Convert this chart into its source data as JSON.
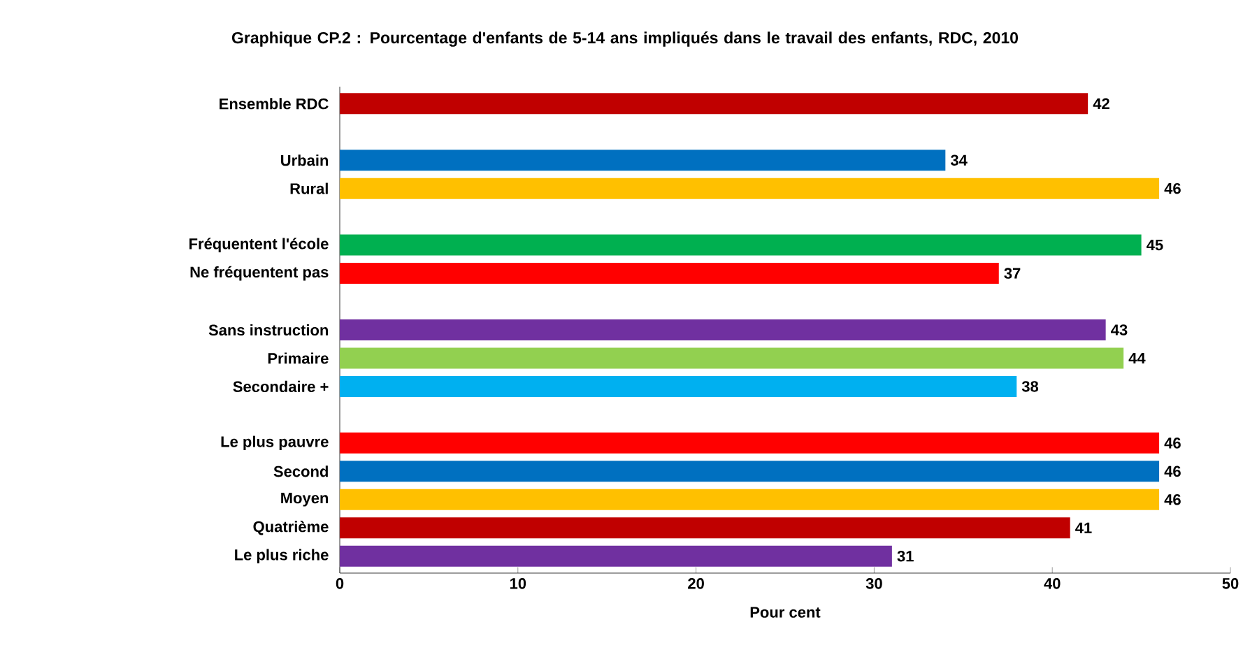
{
  "chart_data": {
    "type": "bar",
    "orientation": "horizontal",
    "title": "Graphique CP.2 : Pourcentage d'enfants de 5-14 ans impliqués dans le travail des enfants, RDC, 2010",
    "xlabel": "Pour cent",
    "categories": [
      "Ensemble RDC",
      null,
      "Urbain",
      "Rural",
      null,
      "Fréquentent l'école",
      "Ne fréquentent pas",
      null,
      "Sans instruction",
      "Primaire",
      "Secondaire +",
      null,
      "Le plus pauvre",
      "Second",
      "Moyen",
      "Quatrième",
      "Le plus riche"
    ],
    "values": [
      42,
      null,
      34,
      46,
      null,
      45,
      37,
      null,
      43,
      44,
      38,
      null,
      46,
      46,
      46,
      41,
      31
    ],
    "colors": [
      "#c00000",
      null,
      "#0070c0",
      "#ffc000",
      null,
      "#00b050",
      "#ff0000",
      null,
      "#7030a0",
      "#92d050",
      "#00b0f0",
      null,
      "#ff0000",
      "#0070c0",
      "#ffc000",
      "#c00000",
      "#7030a0"
    ],
    "xlim": [
      0,
      50
    ],
    "xticks": [
      0,
      10,
      20,
      30,
      40,
      50
    ],
    "data_labels": true,
    "grid": false
  }
}
